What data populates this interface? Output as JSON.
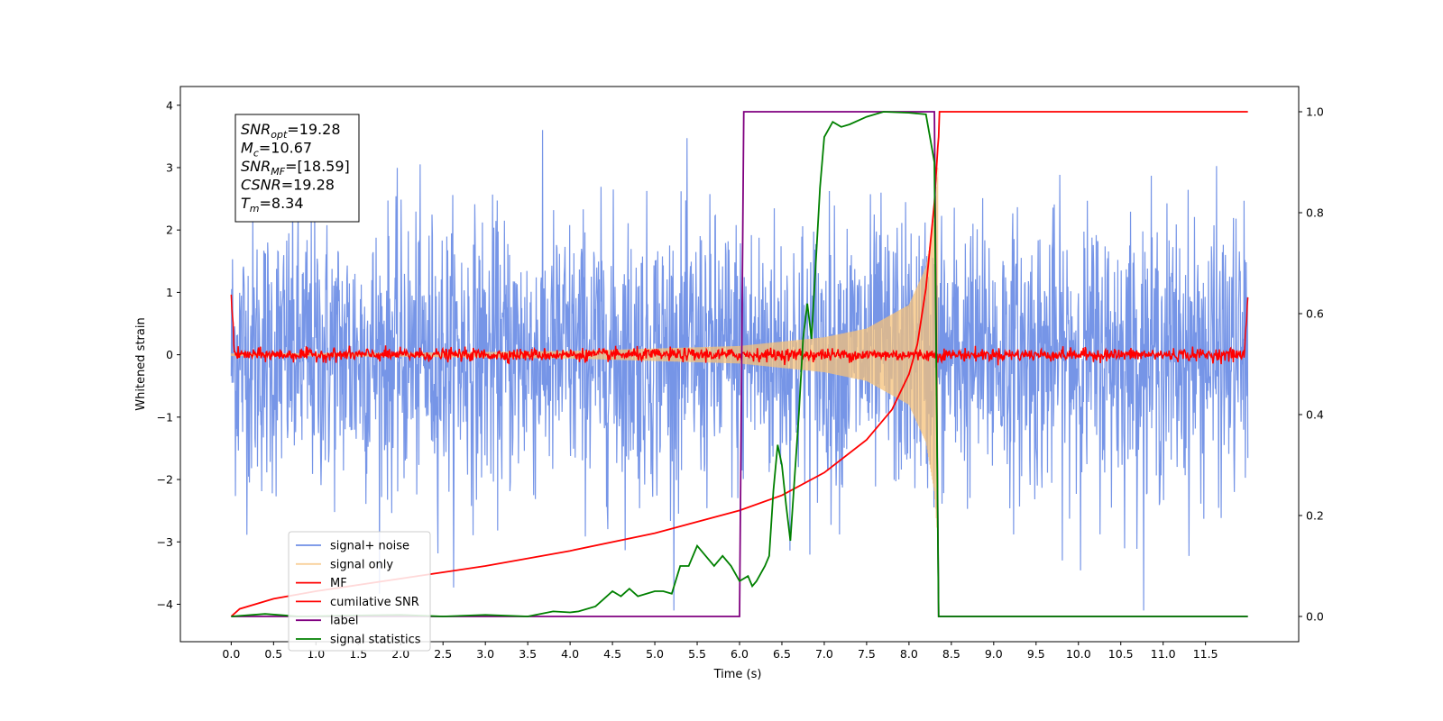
{
  "chart_data": {
    "type": "line",
    "title": "",
    "xlabel": "Time (s)",
    "ylabel": "Whitened strain",
    "y2label": "",
    "xlim": [
      -0.6,
      12.6
    ],
    "ylim": [
      -4.6,
      4.3
    ],
    "y2lim": [
      -0.05,
      1.05
    ],
    "x_ticks": [
      0.0,
      0.5,
      1.0,
      1.5,
      2.0,
      2.5,
      3.0,
      3.5,
      4.0,
      4.5,
      5.0,
      5.5,
      6.0,
      6.5,
      7.0,
      7.5,
      8.0,
      8.5,
      9.0,
      9.5,
      10.0,
      10.5,
      11.0,
      11.5
    ],
    "x_tick_labels": [
      "0.0",
      "0.5",
      "1.0",
      "1.5",
      "2.0",
      "2.5",
      "3.0",
      "3.5",
      "4.0",
      "4.5",
      "5.0",
      "5.5",
      "6.0",
      "6.5",
      "7.0",
      "7.5",
      "8.0",
      "8.5",
      "9.0",
      "9.5",
      "10.0",
      "10.5",
      "11.0",
      "11.5"
    ],
    "y_ticks": [
      -4,
      -3,
      -2,
      -1,
      0,
      1,
      2,
      3,
      4
    ],
    "y_tick_labels": [
      "−4",
      "−3",
      "−2",
      "−1",
      "0",
      "1",
      "2",
      "3",
      "4"
    ],
    "y2_ticks": [
      0.0,
      0.2,
      0.4,
      0.6,
      0.8,
      1.0
    ],
    "y2_tick_labels": [
      "0.0",
      "0.2",
      "0.4",
      "0.6",
      "0.8",
      "1.0"
    ],
    "grid": false,
    "legend_position": "lower-left",
    "stats_box": [
      {
        "base": "SNR",
        "sub": "opt",
        "value": "=19.28"
      },
      {
        "base": "M",
        "sub": "c",
        "value": "=10.67"
      },
      {
        "base": "SNR",
        "sub": "MF",
        "value": "=[18.59]"
      },
      {
        "base": "CSNR",
        "sub": "",
        "value": "=19.28"
      },
      {
        "base": "T",
        "sub": "m",
        "value": "=8.34"
      }
    ],
    "series": [
      {
        "name": "signal+ noise",
        "axis": "left",
        "color": "#6f8fe6",
        "style": "noise",
        "x_range": [
          0.0,
          12.0
        ],
        "approx_std": 1.1,
        "approx_peak": [
          -4.1,
          3.9
        ]
      },
      {
        "name": "signal only",
        "axis": "left",
        "color": "#f5c27a",
        "style": "chirp",
        "x_range": [
          0.0,
          8.34
        ],
        "envelope": [
          [
            0.0,
            0.02
          ],
          [
            2.0,
            0.03
          ],
          [
            4.0,
            0.06
          ],
          [
            6.0,
            0.14
          ],
          [
            7.0,
            0.28
          ],
          [
            7.5,
            0.42
          ],
          [
            8.0,
            0.8
          ],
          [
            8.2,
            1.4
          ],
          [
            8.3,
            2.2
          ],
          [
            8.34,
            3.0
          ]
        ]
      },
      {
        "name": "MF",
        "axis": "left",
        "color": "#ff0000",
        "style": "mf",
        "x_range": [
          0.0,
          12.0
        ],
        "approx_std": 0.05,
        "edge_peaks": [
          [
            0.0,
            1.0
          ],
          [
            12.0,
            0.93
          ]
        ]
      },
      {
        "name": "cumilative SNR",
        "axis": "right",
        "color": "#ff0000",
        "style": "line",
        "points": [
          [
            0.0,
            0.0
          ],
          [
            0.1,
            0.015
          ],
          [
            0.5,
            0.035
          ],
          [
            1.0,
            0.05
          ],
          [
            2.0,
            0.075
          ],
          [
            3.0,
            0.1
          ],
          [
            4.0,
            0.13
          ],
          [
            5.0,
            0.165
          ],
          [
            6.0,
            0.21
          ],
          [
            6.5,
            0.24
          ],
          [
            7.0,
            0.285
          ],
          [
            7.5,
            0.35
          ],
          [
            7.8,
            0.41
          ],
          [
            8.0,
            0.48
          ],
          [
            8.1,
            0.54
          ],
          [
            8.2,
            0.65
          ],
          [
            8.3,
            0.82
          ],
          [
            8.34,
            0.93
          ],
          [
            8.35,
            0.95
          ],
          [
            8.36,
            1.0
          ],
          [
            12.0,
            1.0
          ]
        ]
      },
      {
        "name": "label",
        "axis": "right",
        "color": "#800080",
        "style": "step",
        "points": [
          [
            0.0,
            0.0
          ],
          [
            6.0,
            0.0
          ],
          [
            6.05,
            1.0
          ],
          [
            8.3,
            1.0
          ],
          [
            8.35,
            0.0
          ],
          [
            12.0,
            0.0
          ]
        ]
      },
      {
        "name": "signal statistics",
        "axis": "right",
        "color": "#008000",
        "style": "line",
        "points": [
          [
            0.0,
            0.0
          ],
          [
            0.4,
            0.005
          ],
          [
            0.8,
            0.0
          ],
          [
            1.5,
            0.002
          ],
          [
            2.0,
            0.003
          ],
          [
            2.5,
            0.0
          ],
          [
            3.0,
            0.003
          ],
          [
            3.5,
            0.0
          ],
          [
            3.8,
            0.01
          ],
          [
            4.0,
            0.008
          ],
          [
            4.1,
            0.01
          ],
          [
            4.3,
            0.02
          ],
          [
            4.4,
            0.035
          ],
          [
            4.5,
            0.05
          ],
          [
            4.6,
            0.04
          ],
          [
            4.7,
            0.055
          ],
          [
            4.8,
            0.04
          ],
          [
            5.0,
            0.05
          ],
          [
            5.1,
            0.05
          ],
          [
            5.2,
            0.045
          ],
          [
            5.3,
            0.1
          ],
          [
            5.4,
            0.1
          ],
          [
            5.5,
            0.14
          ],
          [
            5.6,
            0.12
          ],
          [
            5.7,
            0.1
          ],
          [
            5.8,
            0.12
          ],
          [
            5.9,
            0.1
          ],
          [
            6.0,
            0.07
          ],
          [
            6.1,
            0.08
          ],
          [
            6.15,
            0.06
          ],
          [
            6.2,
            0.07
          ],
          [
            6.3,
            0.1
          ],
          [
            6.35,
            0.12
          ],
          [
            6.4,
            0.25
          ],
          [
            6.45,
            0.34
          ],
          [
            6.5,
            0.3
          ],
          [
            6.55,
            0.22
          ],
          [
            6.6,
            0.15
          ],
          [
            6.7,
            0.4
          ],
          [
            6.75,
            0.55
          ],
          [
            6.8,
            0.62
          ],
          [
            6.85,
            0.55
          ],
          [
            6.9,
            0.7
          ],
          [
            6.95,
            0.85
          ],
          [
            7.0,
            0.95
          ],
          [
            7.1,
            0.98
          ],
          [
            7.2,
            0.97
          ],
          [
            7.3,
            0.975
          ],
          [
            7.5,
            0.99
          ],
          [
            7.7,
            1.0
          ],
          [
            8.0,
            0.998
          ],
          [
            8.2,
            0.995
          ],
          [
            8.3,
            0.9
          ],
          [
            8.35,
            0.0
          ],
          [
            12.0,
            0.0
          ]
        ]
      }
    ]
  }
}
